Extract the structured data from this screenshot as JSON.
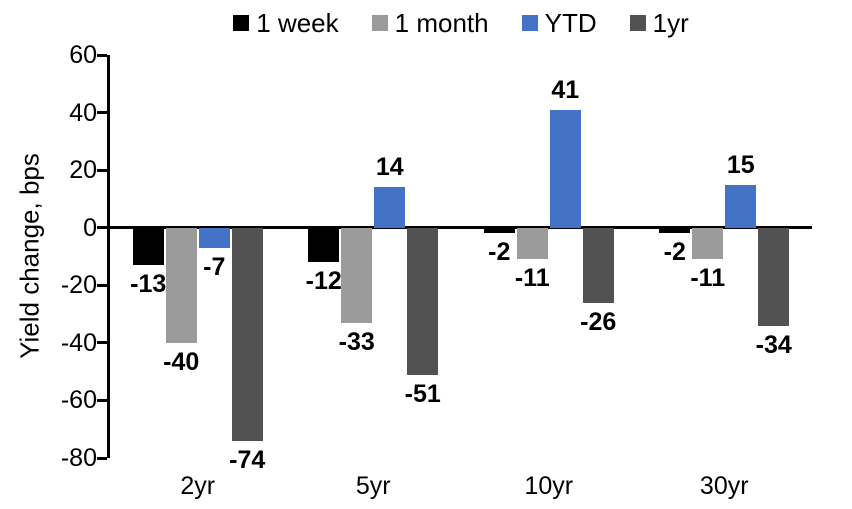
{
  "chart_data": {
    "type": "bar",
    "title": "",
    "xlabel": "",
    "ylabel": "Yield change, bps",
    "categories": [
      "2yr",
      "5yr",
      "10yr",
      "30yr"
    ],
    "series": [
      {
        "name": "1 week",
        "color": "#000000",
        "values": [
          -13,
          -12,
          -2,
          -2
        ]
      },
      {
        "name": "1 month",
        "color": "#9B9B9B",
        "values": [
          -40,
          -33,
          -11,
          -11
        ]
      },
      {
        "name": "YTD",
        "color": "#4472C4",
        "values": [
          -7,
          14,
          41,
          15
        ]
      },
      {
        "name": "1yr",
        "color": "#525252",
        "values": [
          -74,
          -51,
          -26,
          -34
        ]
      }
    ],
    "ylim": [
      -80,
      60
    ],
    "yticks": [
      60,
      40,
      20,
      0,
      -20,
      -40,
      -60,
      -80
    ],
    "grid": false,
    "legend_position": "top",
    "data_labels": true,
    "axis_color": "#000000",
    "text_color": "#000000"
  }
}
